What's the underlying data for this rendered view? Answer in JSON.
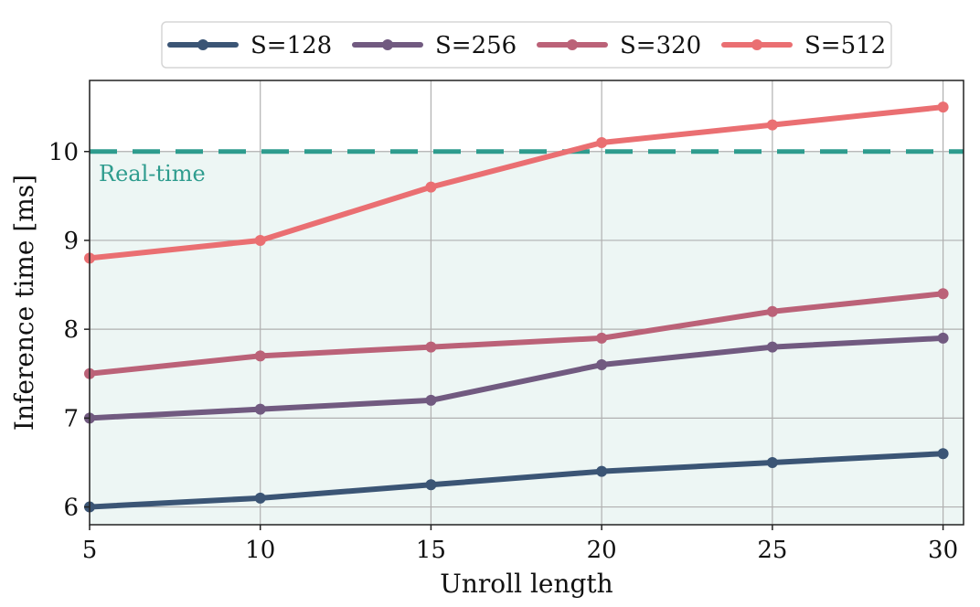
{
  "chart_data": {
    "type": "line",
    "title": "",
    "xlabel": "Unroll length",
    "ylabel": "Inference time [ms]",
    "x": [
      5,
      10,
      15,
      20,
      25,
      30
    ],
    "xlim": [
      5,
      30.6
    ],
    "ylim": [
      5.8,
      10.8
    ],
    "xticks": [
      "5",
      "10",
      "15",
      "20",
      "25",
      "30"
    ],
    "yticks": [
      "6",
      "7",
      "8",
      "9",
      "10"
    ],
    "grid": true,
    "legend_position": "top-center",
    "series": [
      {
        "name": "S=128",
        "color": "#3b5575",
        "values": [
          6.0,
          6.1,
          6.25,
          6.4,
          6.5,
          6.6
        ]
      },
      {
        "name": "S=256",
        "color": "#715a80",
        "values": [
          7.0,
          7.1,
          7.2,
          7.6,
          7.8,
          7.9
        ]
      },
      {
        "name": "S=320",
        "color": "#bb6278",
        "values": [
          7.5,
          7.7,
          7.8,
          7.9,
          8.2,
          8.4
        ]
      },
      {
        "name": "S=512",
        "color": "#ea6f72",
        "values": [
          8.8,
          9.0,
          9.6,
          10.1,
          10.3,
          10.5
        ]
      }
    ],
    "threshold": {
      "value": 10,
      "label": "Real-time",
      "color": "#2e9c8e",
      "fill": "#edf6f4"
    }
  }
}
